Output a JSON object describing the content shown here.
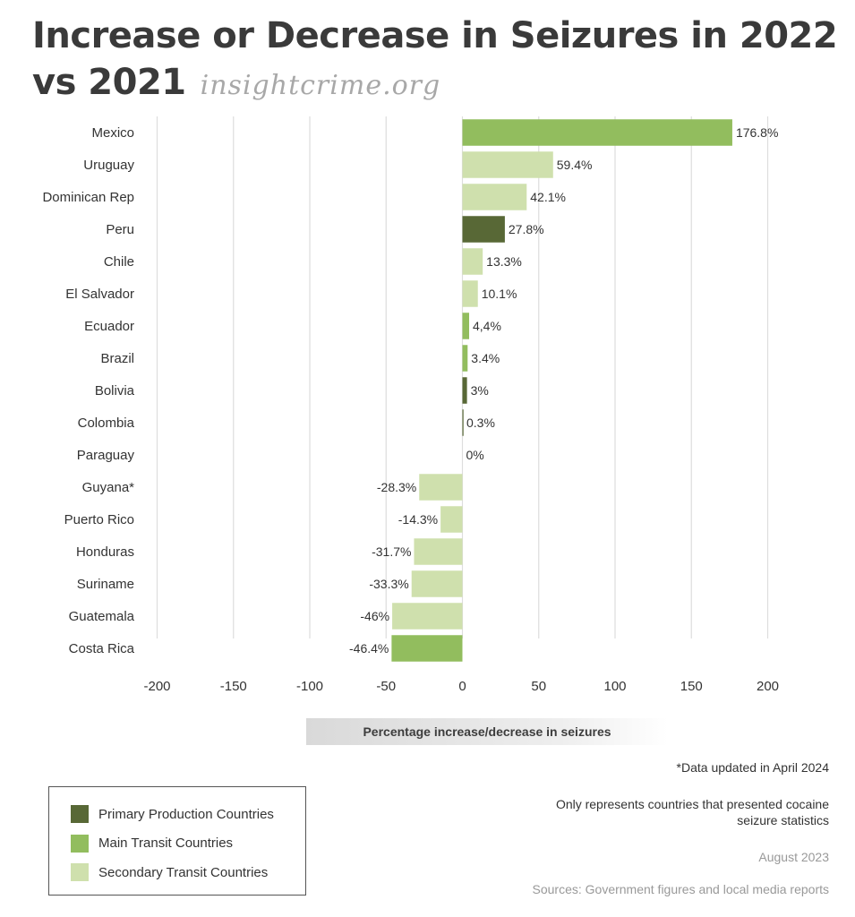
{
  "title_line1": "Increase or Decrease in Seizures in 2022",
  "title_line2": "vs 2021",
  "brand": "insightcrime.org",
  "colors": {
    "primary_production": "#586836",
    "main_transit": "#92bd5e",
    "secondary_transit": "#cfe0ad",
    "grid": "#dddddd"
  },
  "chart_data": {
    "type": "bar",
    "orientation": "horizontal",
    "title": "Increase or Decrease in Seizures in 2022 vs 2021",
    "xlabel": "Percentage increase/decrease in seizures",
    "xlim": [
      -200,
      200
    ],
    "xticks": [
      -200,
      -150,
      -100,
      -50,
      0,
      50,
      100,
      150,
      200
    ],
    "grid": true,
    "categories": [
      "Mexico",
      "Uruguay",
      "Dominican Rep",
      "Peru",
      "Chile",
      "El Salvador",
      "Ecuador",
      "Brazil",
      "Bolivia",
      "Colombia",
      "Paraguay",
      "Guyana*",
      "Puerto Rico",
      "Honduras",
      "Suriname",
      "Guatemala",
      "Costa Rica"
    ],
    "values": [
      176.8,
      59.4,
      42.1,
      27.8,
      13.3,
      10.1,
      4.4,
      3.4,
      3,
      0.3,
      0,
      -28.3,
      -14.3,
      -31.7,
      -33.3,
      -46,
      -46.4
    ],
    "value_labels": [
      "176.8%",
      "59.4%",
      "42.1%",
      "27.8%",
      "13.3%",
      "10.1%",
      "4,4%",
      "3.4%",
      "3%",
      "0.3%",
      "0%",
      "-28.3%",
      "-14.3%",
      "-31.7%",
      "-33.3%",
      "-46%",
      "-46.4%"
    ],
    "groups": [
      "main_transit",
      "secondary_transit",
      "secondary_transit",
      "primary_production",
      "secondary_transit",
      "secondary_transit",
      "main_transit",
      "main_transit",
      "primary_production",
      "primary_production",
      "secondary_transit",
      "secondary_transit",
      "secondary_transit",
      "secondary_transit",
      "secondary_transit",
      "secondary_transit",
      "main_transit"
    ],
    "legend": [
      {
        "key": "primary_production",
        "label": "Primary Production Countries"
      },
      {
        "key": "main_transit",
        "label": "Main Transit Countries"
      },
      {
        "key": "secondary_transit",
        "label": "Secondary Transit Countries"
      }
    ],
    "legend_position": "bottom-left"
  },
  "notes": {
    "data_updated": "*Data updated in April 2024",
    "coverage_line1": "Only represents countries that presented cocaine",
    "coverage_line2": "seizure statistics",
    "date": "August 2023",
    "sources": "Sources: Government figures and local media reports"
  }
}
